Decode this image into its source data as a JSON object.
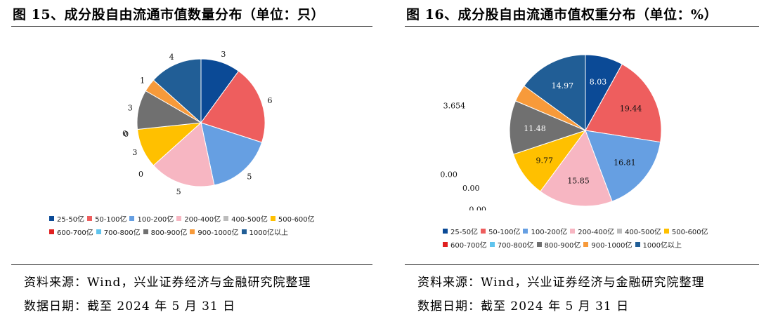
{
  "charts": [
    {
      "title": "图 15、成分股自由流通市值数量分布（单位：只）",
      "source": "资料来源：Wind，兴业证券经济与金融研究院整理",
      "date_note": "数据日期：截至 2024 年 5 月 31 日"
    },
    {
      "title": "图 16、成分股自由流通市值权重分布（单位：%）",
      "source": "资料来源：Wind，兴业证券经济与金融研究院整理",
      "date_note": "数据日期：截至 2024 年 5 月 31 日"
    }
  ],
  "colors": [
    "#0b4a96",
    "#ee5e5e",
    "#669fe2",
    "#f7b6c2",
    "#bcbcbc",
    "#ffc000",
    "#e02020",
    "#5fc4ee",
    "#707070",
    "#f79a3a",
    "#215e96"
  ],
  "chart_data": [
    {
      "type": "pie",
      "title": "图 15、成分股自由流通市值数量分布（单位：只）",
      "categories": [
        "25-50亿",
        "50-100亿",
        "100-200亿",
        "200-400亿",
        "400-500亿",
        "500-600亿",
        "600-700亿",
        "700-800亿",
        "800-900亿",
        "900-1000亿",
        "1000亿以上"
      ],
      "values": [
        3,
        6,
        5,
        5,
        0,
        3,
        0,
        0,
        3,
        1,
        4
      ],
      "value_labels": [
        "3",
        "6",
        "5",
        "5",
        "0",
        "3",
        "0",
        "0",
        "3",
        "1",
        "4"
      ],
      "legend": "bottom"
    },
    {
      "type": "pie",
      "title": "图 16、成分股自由流通市值权重分布（单位：%）",
      "categories": [
        "25-50亿",
        "50-100亿",
        "100-200亿",
        "200-400亿",
        "400-500亿",
        "500-600亿",
        "600-700亿",
        "700-800亿",
        "800-900亿",
        "900-1000亿",
        "1000亿以上"
      ],
      "values": [
        8.03,
        19.44,
        16.81,
        15.85,
        0.0,
        9.77,
        0.0,
        0.0,
        11.48,
        3.654,
        14.97
      ],
      "value_labels": [
        "8.03",
        "19.44",
        "16.81",
        "15.85",
        "0.00",
        "9.77",
        "0.00",
        "0.00",
        "11.48",
        "3.654",
        "14.97"
      ],
      "legend": "bottom"
    }
  ]
}
